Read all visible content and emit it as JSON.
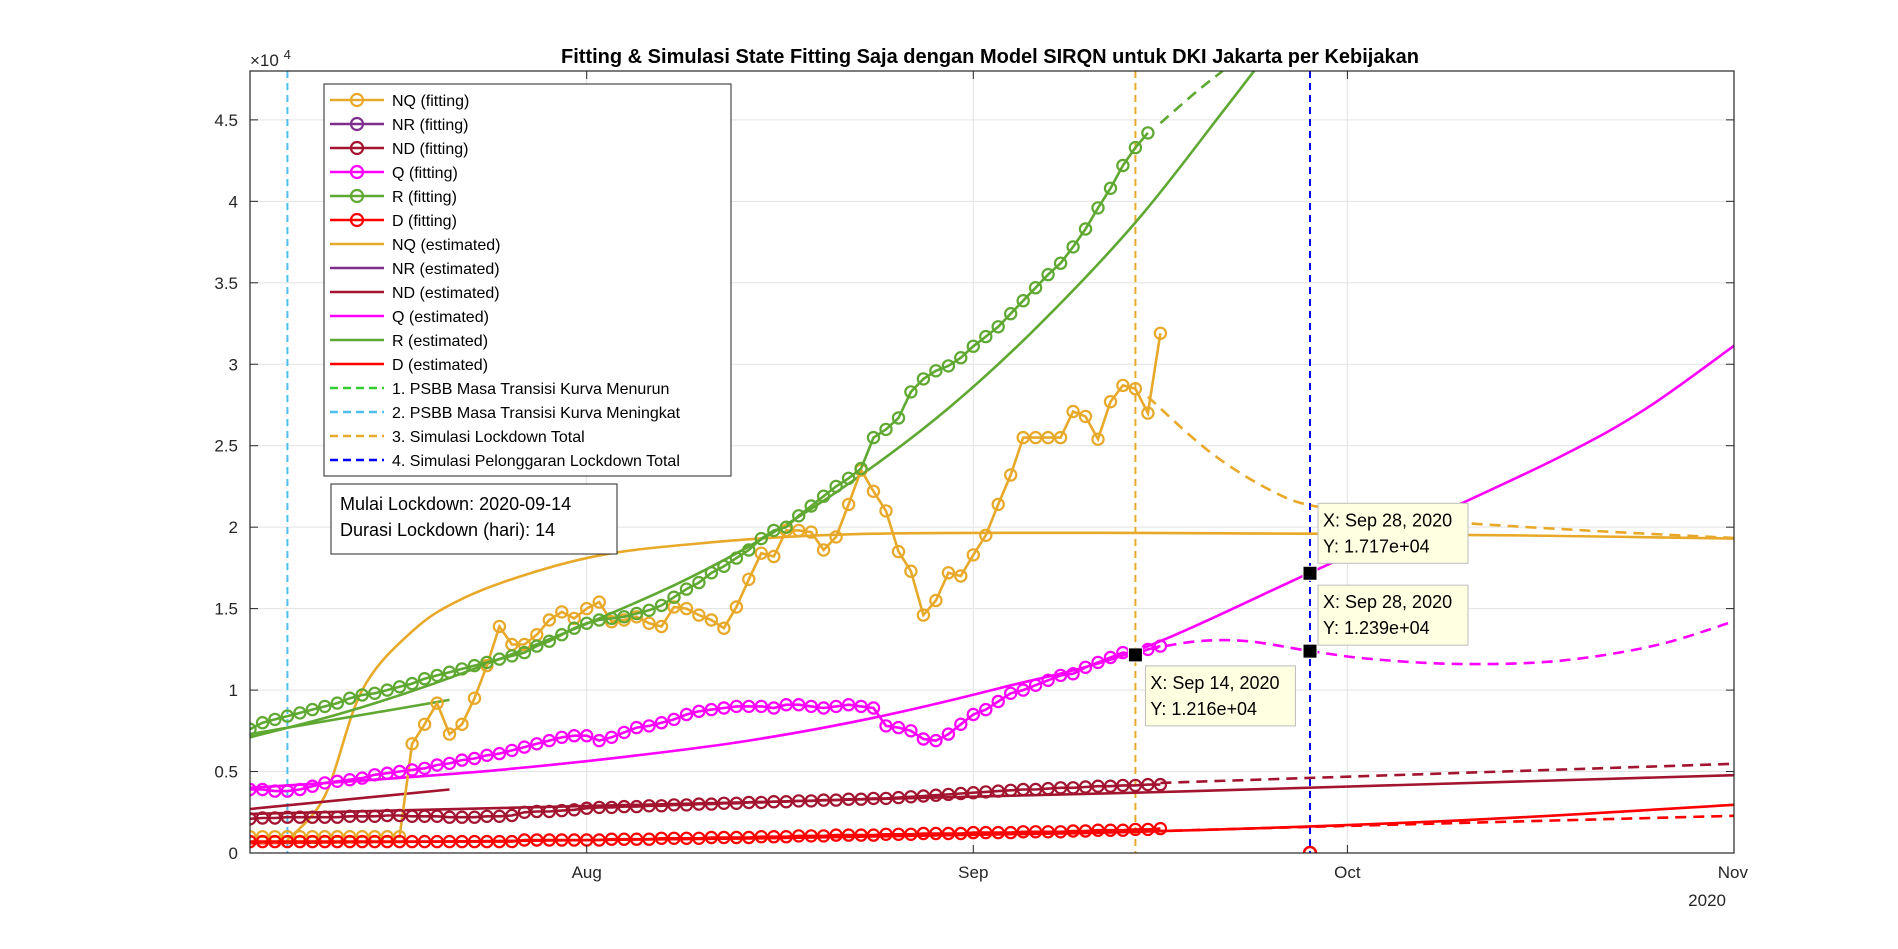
{
  "chart_data": {
    "type": "line",
    "title": "Fitting & Simulasi State Fitting Saja dengan Model SIRQN untuk DKI Jakarta per Kebijakan",
    "xlabel": "",
    "ylabel": "",
    "y_exponent_label": "×10",
    "y_exponent_power": "4",
    "x_year_label": "2020",
    "xlim": [
      "2020-07-05",
      "2020-11-01"
    ],
    "ylim": [
      0,
      48000
    ],
    "grid": true,
    "legend_position": "top-left",
    "x_ticks": [
      {
        "date": "2020-08-01",
        "label": "Aug"
      },
      {
        "date": "2020-09-01",
        "label": "Sep"
      },
      {
        "date": "2020-10-01",
        "label": "Oct"
      },
      {
        "date": "2020-11-01",
        "label": "Nov"
      }
    ],
    "y_ticks": [
      {
        "value": 0,
        "label": "0"
      },
      {
        "value": 5000,
        "label": "0.5"
      },
      {
        "value": 10000,
        "label": "1"
      },
      {
        "value": 15000,
        "label": "1.5"
      },
      {
        "value": 20000,
        "label": "2"
      },
      {
        "value": 25000,
        "label": "2.5"
      },
      {
        "value": 30000,
        "label": "3"
      },
      {
        "value": 35000,
        "label": "3.5"
      },
      {
        "value": 40000,
        "label": "4"
      },
      {
        "value": 45000,
        "label": "4.5"
      }
    ],
    "colors": {
      "NQ": "#e8a92a",
      "NR": "#7e2f8e",
      "ND": "#a2142f",
      "Q": "#ff00ff",
      "R": "#5fa832",
      "D": "#ff0000",
      "policy1": "#33cc33",
      "policy2": "#4dbeee",
      "policy3": "#e8a92a",
      "policy4": "#0000ff"
    },
    "legend": [
      {
        "label": "NQ (fitting)",
        "color_key": "NQ",
        "style": "marker"
      },
      {
        "label": "NR (fitting)",
        "color_key": "NR",
        "style": "marker"
      },
      {
        "label": "ND (fitting)",
        "color_key": "ND",
        "style": "marker"
      },
      {
        "label": "Q (fitting)",
        "color_key": "Q",
        "style": "marker"
      },
      {
        "label": "R (fitting)",
        "color_key": "R",
        "style": "marker"
      },
      {
        "label": "D (fitting)",
        "color_key": "D",
        "style": "marker"
      },
      {
        "label": "NQ (estimated)",
        "color_key": "NQ",
        "style": "line"
      },
      {
        "label": "NR (estimated)",
        "color_key": "NR",
        "style": "line"
      },
      {
        "label": "ND (estimated)",
        "color_key": "ND",
        "style": "line"
      },
      {
        "label": "Q (estimated)",
        "color_key": "Q",
        "style": "line"
      },
      {
        "label": "R (estimated)",
        "color_key": "R",
        "style": "line"
      },
      {
        "label": "D (estimated)",
        "color_key": "D",
        "style": "line"
      },
      {
        "label": "1. PSBB Masa Transisi Kurva Menurun",
        "color_key": "policy1",
        "style": "dashed"
      },
      {
        "label": "2. PSBB Masa Transisi Kurva Meningkat",
        "color_key": "policy2",
        "style": "dashed"
      },
      {
        "label": "3. Simulasi Lockdown Total",
        "color_key": "policy3",
        "style": "dashed"
      },
      {
        "label": "4. Simulasi Pelonggaran Lockdown Total",
        "color_key": "policy4",
        "style": "dashed"
      }
    ],
    "vlines": [
      {
        "date": "2020-07-08",
        "color_key": "policy2"
      },
      {
        "date": "2020-09-14",
        "color_key": "policy3"
      },
      {
        "date": "2020-09-28",
        "color_key": "policy4"
      }
    ],
    "series": [
      {
        "name": "NQ (fitting)",
        "color_key": "NQ",
        "kind": "fitting",
        "start": "2020-07-05",
        "values": [
          1000,
          1000,
          1000,
          1000,
          1000,
          1000,
          1000,
          1000,
          1000,
          1000,
          1000,
          1000,
          1000,
          6700,
          7900,
          9200,
          7300,
          7900,
          9500,
          11500,
          13900,
          12800,
          12800,
          13400,
          14300,
          14800,
          14400,
          15000,
          15400,
          14200,
          14300,
          14500,
          14100,
          13900,
          15100,
          15000,
          14600,
          14300,
          13800,
          15100,
          16800,
          18400,
          18200,
          19800,
          19800,
          19700,
          18600,
          19400,
          21400,
          23500,
          22200,
          21000,
          18500,
          17300,
          14600,
          15500,
          17200,
          17000,
          18300,
          19500,
          21400,
          23200,
          25500,
          25500,
          25500,
          25500,
          27100,
          26800,
          25400,
          27700,
          28700,
          28500,
          27000,
          31900
        ]
      },
      {
        "name": "R (fitting)",
        "color_key": "R",
        "kind": "fitting",
        "start": "2020-07-05",
        "values": [
          7600,
          8000,
          8200,
          8400,
          8600,
          8800,
          9000,
          9200,
          9500,
          9700,
          9800,
          10000,
          10200,
          10400,
          10700,
          10900,
          11100,
          11300,
          11500,
          11700,
          11900,
          12100,
          12300,
          12700,
          13000,
          13400,
          13800,
          14100,
          14300,
          14400,
          14500,
          14700,
          14900,
          15200,
          15700,
          16200,
          16600,
          17200,
          17600,
          18100,
          18600,
          19300,
          19800,
          20000,
          20700,
          21300,
          21900,
          22500,
          23000,
          23600,
          25500,
          26000,
          26700,
          28300,
          29100,
          29600,
          29900,
          30400,
          31100,
          31700,
          32300,
          33100,
          33900,
          34700,
          35500,
          36200,
          37200,
          38300,
          39600,
          40800,
          42200,
          43300,
          44200
        ]
      },
      {
        "name": "Q (fitting)",
        "color_key": "Q",
        "kind": "fitting",
        "start": "2020-07-05",
        "values": [
          3900,
          3900,
          3800,
          3800,
          3900,
          4100,
          4300,
          4400,
          4500,
          4600,
          4800,
          4900,
          5000,
          5100,
          5200,
          5400,
          5500,
          5700,
          5800,
          6000,
          6100,
          6300,
          6500,
          6700,
          6900,
          7100,
          7200,
          7200,
          6900,
          7100,
          7400,
          7700,
          7800,
          8000,
          8200,
          8500,
          8700,
          8800,
          8900,
          9000,
          9000,
          9000,
          8900,
          9100,
          9100,
          9000,
          8900,
          9000,
          9100,
          9000,
          8900,
          7800,
          7700,
          7500,
          7000,
          6900,
          7300,
          7900,
          8500,
          8800,
          9300,
          9800,
          10000,
          10300,
          10600,
          10900,
          11000,
          11400,
          11700,
          12000,
          12300,
          12200,
          12500,
          12700
        ]
      },
      {
        "name": "ND (fitting)",
        "color_key": "ND",
        "kind": "fitting",
        "start": "2020-07-05",
        "values": [
          2100,
          2150,
          2150,
          2200,
          2200,
          2200,
          2200,
          2200,
          2250,
          2250,
          2250,
          2300,
          2300,
          2250,
          2250,
          2250,
          2200,
          2200,
          2200,
          2250,
          2250,
          2300,
          2500,
          2550,
          2550,
          2600,
          2650,
          2750,
          2800,
          2800,
          2850,
          2850,
          2900,
          2900,
          2950,
          2950,
          3000,
          3000,
          3050,
          3050,
          3100,
          3100,
          3150,
          3150,
          3200,
          3200,
          3250,
          3250,
          3300,
          3300,
          3350,
          3350,
          3400,
          3450,
          3500,
          3550,
          3600,
          3650,
          3700,
          3750,
          3800,
          3850,
          3900,
          3900,
          3950,
          4000,
          4000,
          4050,
          4100,
          4100,
          4150,
          4150,
          4200,
          4200
        ]
      },
      {
        "name": "D (fitting)",
        "color_key": "D",
        "kind": "fitting",
        "start": "2020-07-05",
        "values": [
          700,
          700,
          700,
          700,
          700,
          700,
          700,
          700,
          700,
          700,
          700,
          700,
          700,
          700,
          700,
          700,
          700,
          700,
          700,
          700,
          700,
          700,
          800,
          800,
          800,
          800,
          800,
          800,
          800,
          850,
          850,
          850,
          850,
          900,
          900,
          900,
          900,
          950,
          950,
          950,
          950,
          1000,
          1000,
          1000,
          1050,
          1050,
          1050,
          1100,
          1100,
          1100,
          1100,
          1150,
          1150,
          1150,
          1200,
          1200,
          1200,
          1200,
          1250,
          1250,
          1250,
          1250,
          1300,
          1300,
          1300,
          1300,
          1350,
          1350,
          1400,
          1400,
          1400,
          1450,
          1450,
          1500
        ]
      },
      {
        "name": "NQ (estimated)",
        "color_key": "NQ",
        "kind": "line",
        "x": [
          "2020-07-08",
          "2020-07-11",
          "2020-07-14",
          "2020-07-18",
          "2020-07-22",
          "2020-07-28",
          "2020-08-03",
          "2020-08-10",
          "2020-08-17",
          "2020-08-24",
          "2020-09-01",
          "2020-09-14",
          "2020-09-28",
          "2020-10-14",
          "2020-11-01"
        ],
        "values": [
          800,
          3500,
          10000,
          13600,
          15600,
          17300,
          18400,
          19000,
          19400,
          19600,
          19650,
          19650,
          19600,
          19500,
          19300
        ]
      },
      {
        "name": "R (estimated)",
        "color_key": "R",
        "kind": "line",
        "x": [
          "2020-07-05",
          "2020-07-12",
          "2020-07-19",
          "2020-07-26",
          "2020-08-02",
          "2020-08-09",
          "2020-08-16",
          "2020-08-23",
          "2020-08-30",
          "2020-09-06",
          "2020-09-14",
          "2020-09-21",
          "2020-09-25"
        ],
        "values": [
          7100,
          8500,
          10200,
          12200,
          14400,
          16800,
          19700,
          23200,
          27300,
          32200,
          38700,
          45500,
          49500
        ]
      },
      {
        "name": "Q (estimated)",
        "color_key": "Q",
        "kind": "line",
        "x": [
          "2020-07-05",
          "2020-07-15",
          "2020-07-25",
          "2020-08-04",
          "2020-08-14",
          "2020-08-24",
          "2020-09-03",
          "2020-09-14",
          "2020-09-28",
          "2020-10-08",
          "2020-10-18",
          "2020-10-25",
          "2020-11-02"
        ],
        "values": [
          4000,
          4500,
          5100,
          5900,
          6900,
          8300,
          10100,
          12400,
          17200,
          20700,
          24300,
          27300,
          31700
        ]
      },
      {
        "name": "ND (estimated)",
        "color_key": "ND",
        "kind": "line",
        "x": [
          "2020-07-05",
          "2020-09-14",
          "2020-11-02"
        ],
        "values": [
          2400,
          3700,
          4800
        ]
      },
      {
        "name": "D (estimated)",
        "color_key": "D",
        "kind": "line",
        "x": [
          "2020-07-05",
          "2020-08-15",
          "2020-09-14",
          "2020-10-10",
          "2020-11-02"
        ],
        "values": [
          600,
          900,
          1300,
          2000,
          3000
        ]
      },
      {
        "name": "R (fitting, early)",
        "color_key": "R",
        "kind": "line",
        "legend": false,
        "x": [
          "2020-07-05",
          "2020-07-21"
        ],
        "values": [
          7300,
          9400
        ]
      },
      {
        "name": "ND (fitting, early)",
        "color_key": "ND",
        "kind": "line",
        "legend": false,
        "x": [
          "2020-07-05",
          "2020-07-21"
        ],
        "values": [
          2700,
          3900
        ]
      },
      {
        "name": "NQ (lockdown simulation)",
        "color_key": "NQ",
        "kind": "dashed",
        "legend": false,
        "x": [
          "2020-09-15",
          "2020-09-20",
          "2020-09-25",
          "2020-09-29",
          "2020-10-08",
          "2020-10-20",
          "2020-11-02"
        ],
        "values": [
          28000,
          24600,
          22200,
          21200,
          20400,
          19800,
          19300
        ]
      },
      {
        "name": "Q (lockdown simulation)",
        "color_key": "Q",
        "kind": "dashed",
        "legend": false,
        "x": [
          "2020-09-15",
          "2020-09-19",
          "2020-09-23",
          "2020-09-28",
          "2020-10-03",
          "2020-10-10",
          "2020-10-18",
          "2020-10-26",
          "2020-11-02"
        ],
        "values": [
          12500,
          13000,
          13000,
          12400,
          11900,
          11600,
          11800,
          12800,
          14500
        ]
      },
      {
        "name": "R (lockdown simulation)",
        "color_key": "R",
        "kind": "dashed",
        "legend": false,
        "x": [
          "2020-09-16",
          "2020-09-19",
          "2020-09-21"
        ],
        "values": [
          44800,
          46800,
          48000
        ]
      },
      {
        "name": "ND (lockdown simulation)",
        "color_key": "ND",
        "kind": "dashed",
        "legend": false,
        "x": [
          "2020-09-16",
          "2020-11-02"
        ],
        "values": [
          4300,
          5500
        ]
      },
      {
        "name": "D (lockdown simulation)",
        "color_key": "D",
        "kind": "dashed",
        "legend": false,
        "x": [
          "2020-09-14",
          "2020-09-28",
          "2020-11-02"
        ],
        "values": [
          1300,
          1600,
          2300
        ]
      }
    ],
    "datatips": [
      {
        "date": "2020-09-28",
        "value": 17170,
        "line1": "X: Sep 28, 2020",
        "line2": "Y: 1.717e+04",
        "side": "upper-right"
      },
      {
        "date": "2020-09-28",
        "value": 12390,
        "line1": "X: Sep 28, 2020",
        "line2": "Y: 1.239e+04",
        "side": "right"
      },
      {
        "date": "2020-09-14",
        "value": 12160,
        "line1": "X: Sep 14, 2020",
        "line2": "Y: 1.216e+04",
        "side": "lower-right"
      }
    ],
    "extra_marker": {
      "date": "2020-09-28",
      "value": 0,
      "color_key": "D"
    },
    "annotation": {
      "lines": [
        "Mulai Lockdown: 2020-09-14",
        "Durasi Lockdown (hari): 14"
      ]
    }
  }
}
